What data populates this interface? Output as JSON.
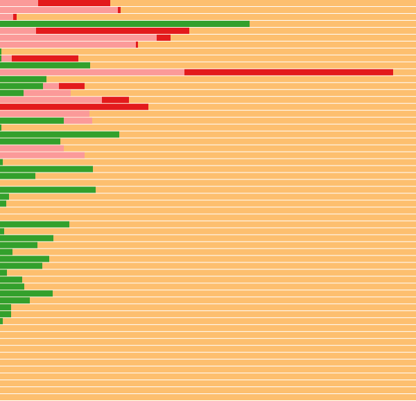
{
  "chart_data": {
    "type": "bar",
    "orientation": "horizontal",
    "stacked": true,
    "title": "",
    "xlabel": "",
    "ylabel": "",
    "xlim": [
      0,
      600
    ],
    "grid": false,
    "legend": "none",
    "series": [
      {
        "color": "#33a02c",
        "values": [
          0,
          0,
          0,
          360,
          0,
          0,
          0,
          2,
          2,
          130,
          0,
          67,
          62,
          34,
          0,
          0,
          0,
          92,
          2,
          172,
          87,
          0,
          0,
          4,
          134,
          51,
          0,
          138,
          13,
          9,
          0,
          0,
          100,
          6,
          77,
          54,
          18,
          71,
          61,
          10,
          32,
          35,
          76,
          43,
          16,
          16,
          4,
          0,
          0,
          0,
          0,
          0,
          0,
          0,
          0,
          0,
          0,
          0
        ]
      },
      {
        "color": "#fb9a99",
        "values": [
          55,
          170,
          19,
          0,
          52,
          226,
          196,
          0,
          15,
          0,
          266,
          0,
          23,
          68,
          147,
          0,
          129,
          41,
          0,
          0,
          0,
          92,
          122,
          0,
          0,
          0,
          0,
          0,
          0,
          0,
          0,
          0,
          0,
          0,
          0,
          0,
          0,
          0,
          0,
          0,
          0,
          0,
          0,
          0,
          0,
          0,
          0,
          0,
          0,
          0,
          0,
          0,
          0,
          0,
          0,
          0,
          0,
          0
        ]
      },
      {
        "color": "#e31a1c",
        "values": [
          104,
          4,
          5,
          0,
          221,
          20,
          3,
          0,
          96,
          0,
          301,
          0,
          37,
          0,
          39,
          214,
          0,
          0,
          0,
          0,
          0,
          0,
          0,
          0,
          0,
          0,
          0,
          0,
          0,
          0,
          0,
          0,
          0,
          0,
          0,
          0,
          0,
          0,
          0,
          0,
          0,
          0,
          0,
          0,
          0,
          0,
          0,
          0,
          0,
          0,
          0,
          0,
          0,
          0,
          0,
          0,
          0,
          0
        ]
      },
      {
        "color": "#fdbf6f",
        "values": [
          441,
          426,
          576,
          240,
          327,
          354,
          401,
          598,
          487,
          468,
          33,
          0,
          0,
          0,
          0,
          0,
          0,
          0,
          0,
          0,
          0,
          0,
          0,
          0,
          0,
          0,
          0,
          0,
          0,
          0,
          0,
          0,
          0,
          0,
          0,
          0,
          0,
          0,
          0,
          0,
          0,
          0,
          0,
          0,
          0,
          0,
          0,
          0,
          0,
          0,
          0,
          0,
          0,
          0,
          0,
          0,
          0,
          0
        ]
      }
    ]
  }
}
